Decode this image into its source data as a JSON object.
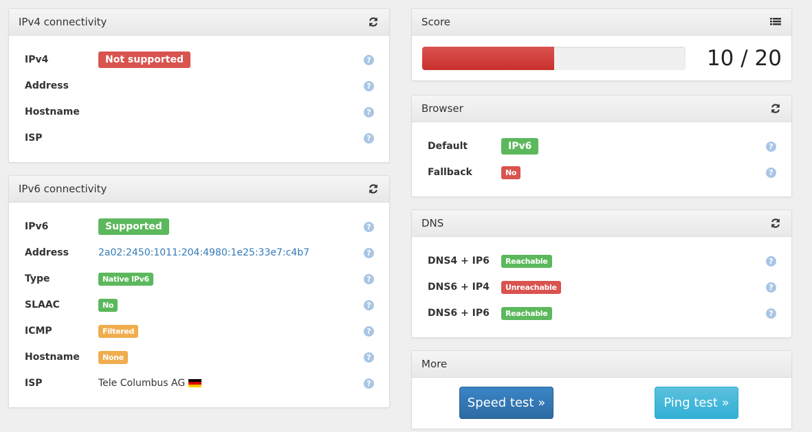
{
  "ipv4": {
    "title": "IPv4 connectivity",
    "rows": [
      {
        "label": "IPv4",
        "value": "Not supported",
        "kind": "badge",
        "size": "lg",
        "color": "red"
      },
      {
        "label": "Address",
        "value": "",
        "kind": "text"
      },
      {
        "label": "Hostname",
        "value": "",
        "kind": "text"
      },
      {
        "label": "ISP",
        "value": "",
        "kind": "text"
      }
    ]
  },
  "ipv6": {
    "title": "IPv6 connectivity",
    "rows": [
      {
        "label": "IPv6",
        "value": "Supported",
        "kind": "badge",
        "size": "lg",
        "color": "green"
      },
      {
        "label": "Address",
        "value": "2a02:2450:1011:204:4980:1e25:33e7:c4b7",
        "kind": "link"
      },
      {
        "label": "Type",
        "value": "Native IPv6",
        "kind": "badge",
        "size": "sm",
        "color": "green"
      },
      {
        "label": "SLAAC",
        "value": "No",
        "kind": "badge",
        "size": "sm",
        "color": "green"
      },
      {
        "label": "ICMP",
        "value": "Filtered",
        "kind": "badge",
        "size": "sm",
        "color": "orange"
      },
      {
        "label": "Hostname",
        "value": "None",
        "kind": "badge",
        "size": "sm",
        "color": "orange"
      },
      {
        "label": "ISP",
        "value": "Tele Columbus AG",
        "kind": "text",
        "flag": "germany-flag"
      }
    ]
  },
  "score": {
    "title": "Score",
    "value": 10,
    "max": 20,
    "text": "10 / 20",
    "bar_color": "#d03a36"
  },
  "browser": {
    "title": "Browser",
    "rows": [
      {
        "label": "Default",
        "value": "IPv6",
        "kind": "badge",
        "size": "lg",
        "color": "green"
      },
      {
        "label": "Fallback",
        "value": "No",
        "kind": "badge",
        "size": "sm",
        "color": "red"
      }
    ]
  },
  "dns": {
    "title": "DNS",
    "rows": [
      {
        "label": "DNS4 + IP6",
        "value": "Reachable",
        "kind": "badge",
        "size": "sm",
        "color": "green"
      },
      {
        "label": "DNS6 + IP4",
        "value": "Unreachable",
        "kind": "badge",
        "size": "sm",
        "color": "red"
      },
      {
        "label": "DNS6 + IP6",
        "value": "Reachable",
        "kind": "badge",
        "size": "sm",
        "color": "green"
      }
    ]
  },
  "more": {
    "title": "More",
    "speed_label": "Speed test »",
    "ping_label": "Ping test »"
  },
  "help_glyph": "?"
}
